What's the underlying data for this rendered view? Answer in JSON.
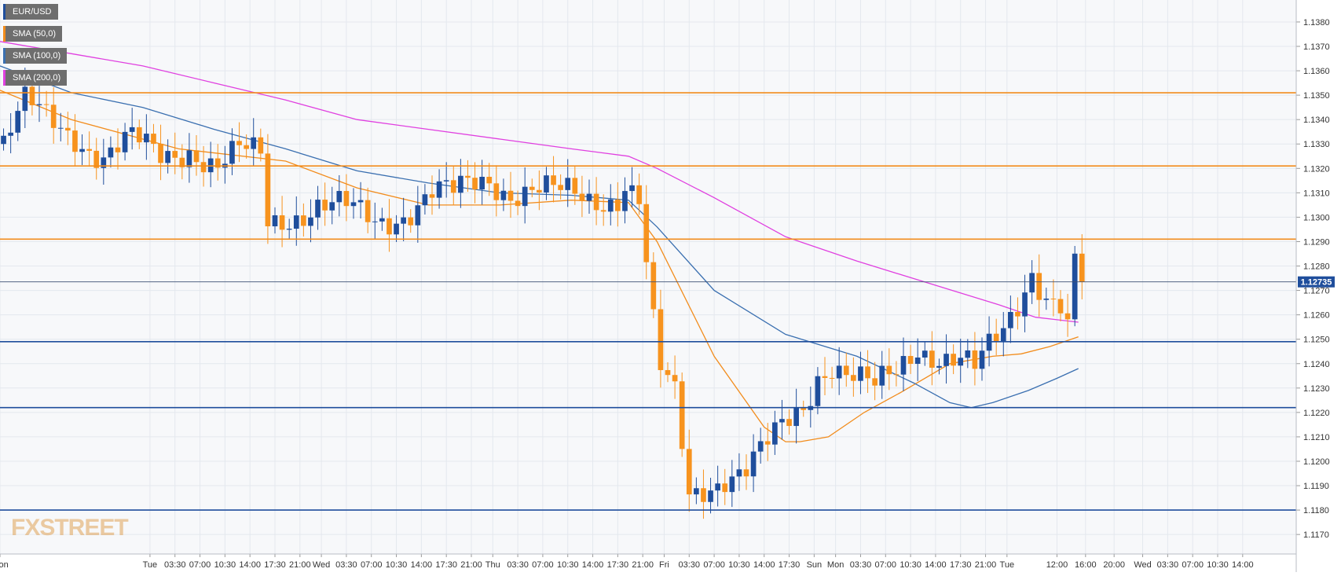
{
  "legend": [
    {
      "label": "EUR/USD",
      "color": "#1f4e9c"
    },
    {
      "label": "SMA (50,0)",
      "color": "#f28c1c"
    },
    {
      "label": "SMA (100,0)",
      "color": "#3a6fb0"
    },
    {
      "label": "SMA (200,0)",
      "color": "#e040e0"
    }
  ],
  "watermark": "FXSTREET",
  "colors": {
    "up": "#1f4e9c",
    "down": "#f7931e",
    "sma50": "#f28c1c",
    "sma100": "#3a6fb0",
    "sma200": "#e040e0",
    "resistance": "#f28c1c",
    "support": "#1f4e9c",
    "price_tag": "#1f4e9c",
    "grid": "#e4e8ee"
  },
  "chart_data": {
    "type": "candlestick",
    "title": "EUR/USD",
    "ylim": [
      1.1162,
      1.1389
    ],
    "yticks": [
      "1.1170",
      "1.1180",
      "1.1190",
      "1.1200",
      "1.1210",
      "1.1220",
      "1.1230",
      "1.1240",
      "1.1250",
      "1.1260",
      "1.1270",
      "1.1280",
      "1.1290",
      "1.1300",
      "1.1310",
      "1.1320",
      "1.1330",
      "1.1340",
      "1.1350",
      "1.1360",
      "1.1370",
      "1.1380"
    ],
    "xticks": [
      "Mon",
      "Tue",
      "03:30",
      "07:00",
      "10:30",
      "14:00",
      "17:30",
      "21:00",
      "Wed",
      "03:30",
      "07:00",
      "10:30",
      "14:00",
      "17:30",
      "21:00",
      "Thu",
      "03:30",
      "07:00",
      "10:30",
      "14:00",
      "17:30",
      "21:00",
      "Fri",
      "03:30",
      "07:00",
      "10:30",
      "14:00",
      "17:30",
      "Sun",
      "Mon",
      "03:30",
      "07:00",
      "10:30",
      "14:00",
      "17:30",
      "21:00",
      "Tue",
      "12:00",
      "16:00",
      "20:00",
      "Wed",
      "03:30",
      "07:00",
      "10:30",
      "14:00"
    ],
    "xtick_hours": [
      0,
      21,
      24.5,
      28,
      31.5,
      35,
      38.5,
      42,
      45,
      48.5,
      52,
      55.5,
      59,
      62.5,
      66,
      69,
      72.5,
      76,
      79.5,
      83,
      86.5,
      90,
      93,
      96.5,
      100,
      103.5,
      107,
      110.5,
      114,
      117,
      120.5,
      124,
      127.5,
      131,
      134.5,
      138,
      141,
      148,
      152,
      156,
      160,
      163.5,
      167,
      170.5,
      174
    ],
    "last_price": "1.12735",
    "last_price_value": 1.12735,
    "horizontal_levels": {
      "resistance": [
        1.1291,
        1.1321,
        1.1351
      ],
      "support": [
        1.1249,
        1.1222,
        1.118
      ],
      "current": 1.12735
    },
    "price_path": [
      [
        0,
        1.133
      ],
      [
        3,
        1.1345
      ],
      [
        6,
        1.134
      ],
      [
        10,
        1.1335
      ],
      [
        14,
        1.1325
      ],
      [
        18,
        1.133
      ],
      [
        22,
        1.1325
      ],
      [
        26,
        1.133
      ],
      [
        30,
        1.132
      ],
      [
        33,
        1.1325
      ],
      [
        36,
        1.1325
      ],
      [
        37,
        1.1298
      ],
      [
        40,
        1.1302
      ],
      [
        44,
        1.1305
      ],
      [
        48,
        1.1302
      ],
      [
        52,
        1.1298
      ],
      [
        56,
        1.1303
      ],
      [
        60,
        1.131
      ],
      [
        63,
        1.1308
      ],
      [
        66,
        1.1313
      ],
      [
        68,
        1.1316
      ],
      [
        71,
        1.1312
      ],
      [
        74,
        1.1312
      ],
      [
        78,
        1.1308
      ],
      [
        82,
        1.1307
      ],
      [
        86,
        1.131
      ],
      [
        87,
        1.1316
      ],
      [
        89,
        1.1308
      ],
      [
        90,
        1.128
      ],
      [
        91,
        1.1255
      ],
      [
        92,
        1.1235
      ],
      [
        94,
        1.1225
      ],
      [
        96,
        1.1185
      ],
      [
        98,
        1.119
      ],
      [
        101,
        1.1196
      ],
      [
        104,
        1.1197
      ],
      [
        107,
        1.1205
      ],
      [
        110,
        1.1215
      ],
      [
        112,
        1.1222
      ],
      [
        114,
        1.1237
      ],
      [
        116,
        1.1242
      ],
      [
        119,
        1.1235
      ],
      [
        122,
        1.1228
      ],
      [
        125,
        1.1235
      ],
      [
        128,
        1.1248
      ],
      [
        131,
        1.1245
      ],
      [
        134,
        1.1242
      ],
      [
        136,
        1.1236
      ],
      [
        138,
        1.1244
      ],
      [
        140,
        1.1252
      ],
      [
        142,
        1.1265
      ],
      [
        144,
        1.128
      ],
      [
        146,
        1.127
      ],
      [
        148,
        1.1265
      ],
      [
        149,
        1.1255
      ],
      [
        150,
        1.128
      ],
      [
        151,
        1.1273
      ]
    ],
    "series": [
      {
        "name": "SMA (50,0)",
        "x": [
          0,
          10,
          25,
          40,
          50,
          60,
          70,
          80,
          88,
          92,
          100,
          107,
          110,
          112,
          116,
          121,
          126,
          133,
          139,
          143,
          147,
          151
        ],
        "y": [
          1.1352,
          1.134,
          1.1328,
          1.1323,
          1.1312,
          1.1305,
          1.1305,
          1.1307,
          1.1306,
          1.129,
          1.1243,
          1.1214,
          1.1208,
          1.1208,
          1.121,
          1.122,
          1.1228,
          1.124,
          1.1243,
          1.1244,
          1.1247,
          1.1251
        ]
      },
      {
        "name": "SMA (100,0)",
        "x": [
          0,
          10,
          20,
          30,
          40,
          50,
          60,
          70,
          80,
          88,
          92,
          100,
          110,
          120,
          128,
          133,
          136,
          139,
          144,
          148,
          151
        ],
        "y": [
          1.1362,
          1.1351,
          1.1345,
          1.1336,
          1.1328,
          1.1319,
          1.1314,
          1.131,
          1.1309,
          1.1307,
          1.1296,
          1.127,
          1.1252,
          1.1243,
          1.1232,
          1.1224,
          1.1222,
          1.1224,
          1.1229,
          1.1234,
          1.1238
        ]
      },
      {
        "name": "SMA (200,0)",
        "x": [
          0,
          10,
          20,
          30,
          40,
          50,
          60,
          70,
          80,
          88,
          92,
          100,
          110,
          120,
          130,
          140,
          145,
          148,
          151
        ],
        "y": [
          1.1372,
          1.1367,
          1.1362,
          1.1355,
          1.1348,
          1.134,
          1.1336,
          1.1332,
          1.1328,
          1.1325,
          1.132,
          1.1308,
          1.1292,
          1.1282,
          1.1273,
          1.1264,
          1.1259,
          1.1258,
          1.1257
        ]
      }
    ]
  }
}
